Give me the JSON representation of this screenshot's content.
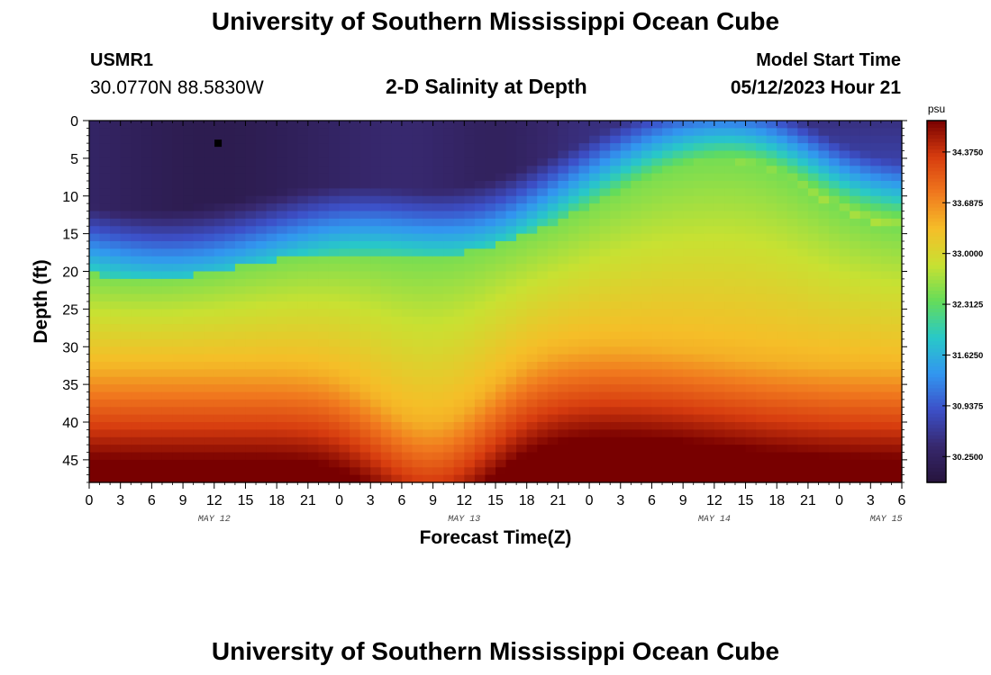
{
  "header": {
    "title": "University of Southern Mississippi Ocean Cube",
    "station_id": "USMR1",
    "coordinates": "30.0770N  88.5830W",
    "subtitle": "2-D Salinity at Depth",
    "model_start_label": "Model Start Time",
    "model_start_value": "05/12/2023 Hour 21"
  },
  "footer": {
    "title": "University of Southern Mississippi Ocean Cube"
  },
  "chart_data": {
    "type": "heatmap",
    "title": "2-D Salinity at Depth",
    "xlabel": "Forecast Time(Z)",
    "ylabel": "Depth (ft)",
    "x_tick_labels": [
      "0",
      "3",
      "6",
      "9",
      "12",
      "15",
      "18",
      "21",
      "0",
      "3",
      "6",
      "9",
      "12",
      "15",
      "18",
      "21",
      "0",
      "3",
      "6",
      "9",
      "12",
      "15",
      "18",
      "21",
      "0",
      "3",
      "6"
    ],
    "date_labels": [
      "MAY 12",
      "MAY 13",
      "MAY 14",
      "MAY 15"
    ],
    "y_ticks": [
      0,
      5,
      10,
      15,
      20,
      25,
      30,
      35,
      40,
      45
    ],
    "ylim": [
      0,
      48
    ],
    "y_inverted": true,
    "colorbar": {
      "unit": "psu",
      "range": [
        29.9,
        34.8
      ],
      "tick_values": [
        34.375,
        33.6875,
        33.0,
        32.3125,
        31.625,
        30.9375,
        30.25
      ],
      "tick_labels": [
        "34.3750",
        "33.6875",
        "33.0000",
        "32.3125",
        "31.6250",
        "30.9375",
        "30.2500"
      ]
    },
    "marker": {
      "time_label": "12",
      "date": "MAY 12",
      "depth_ft": 3
    },
    "colors": {
      "low": "#2a1a4a",
      "mid": "#d8e030",
      "high": "#7a0000"
    }
  }
}
